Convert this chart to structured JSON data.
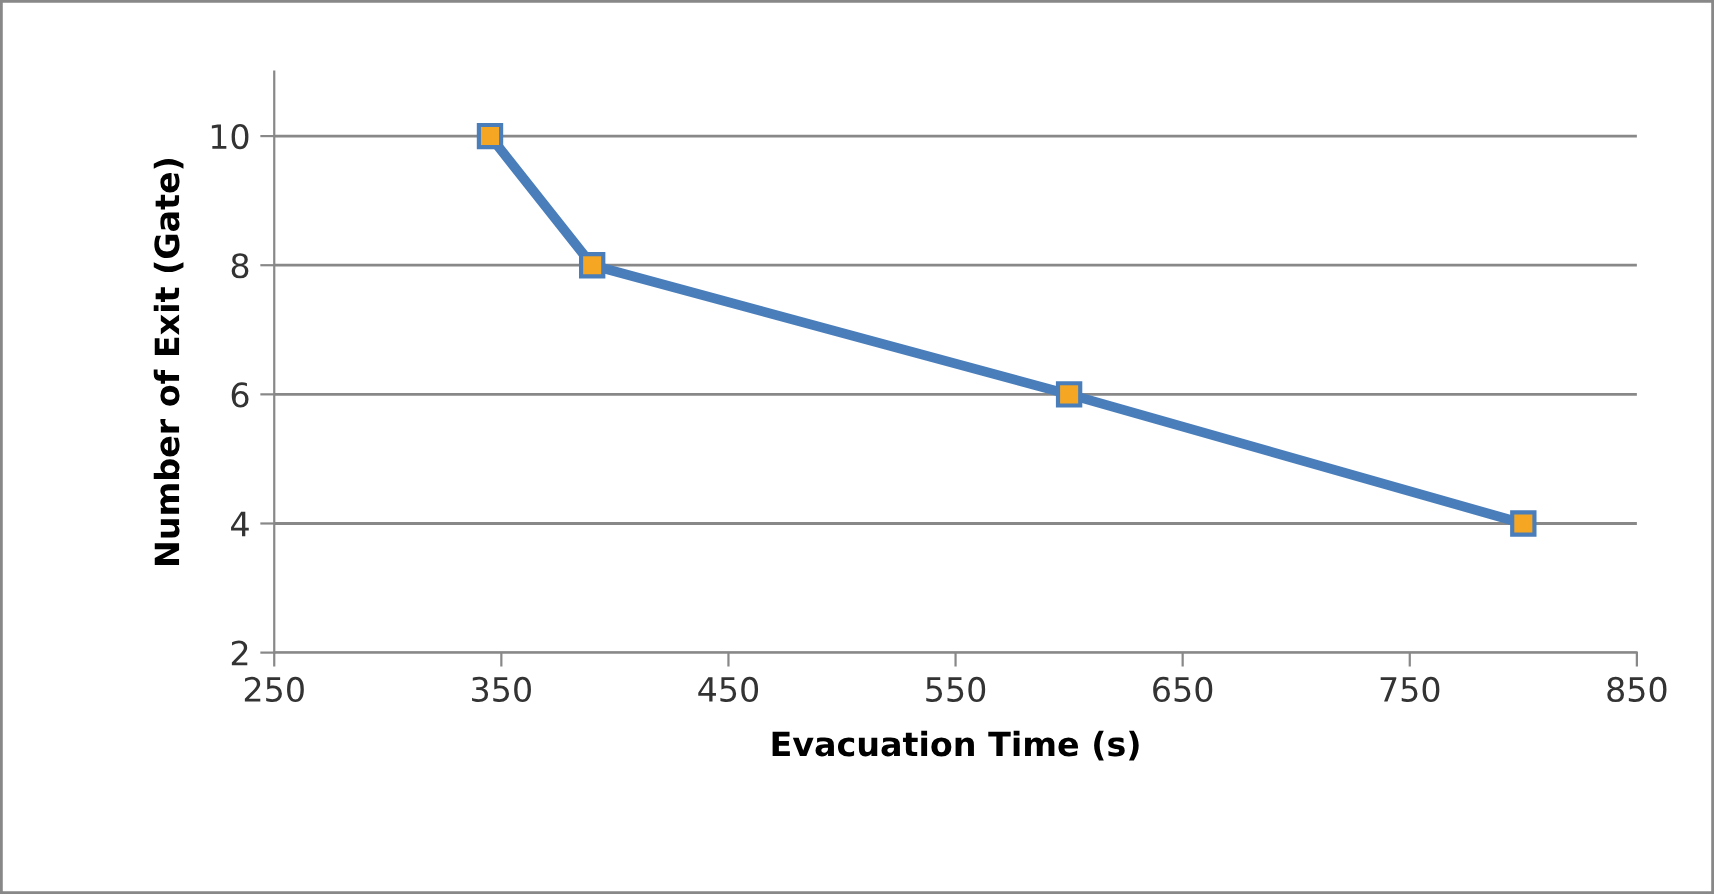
{
  "chart_data": {
    "type": "line",
    "xlabel": "Evacuation Time (s)",
    "ylabel": "Number of Exit (Gate)",
    "x": [
      345,
      390,
      600,
      800
    ],
    "series": [
      {
        "color": "#4a7ebb",
        "values": [
          10,
          8,
          6,
          4
        ]
      }
    ],
    "marker": "square",
    "line_style": "solid",
    "xlim": [
      250,
      850
    ],
    "xticks": [
      250,
      350,
      450,
      550,
      650,
      750,
      850
    ],
    "ylim": [
      2,
      11
    ],
    "yticks": [
      2,
      4,
      6,
      8,
      10
    ],
    "grid": "y"
  }
}
